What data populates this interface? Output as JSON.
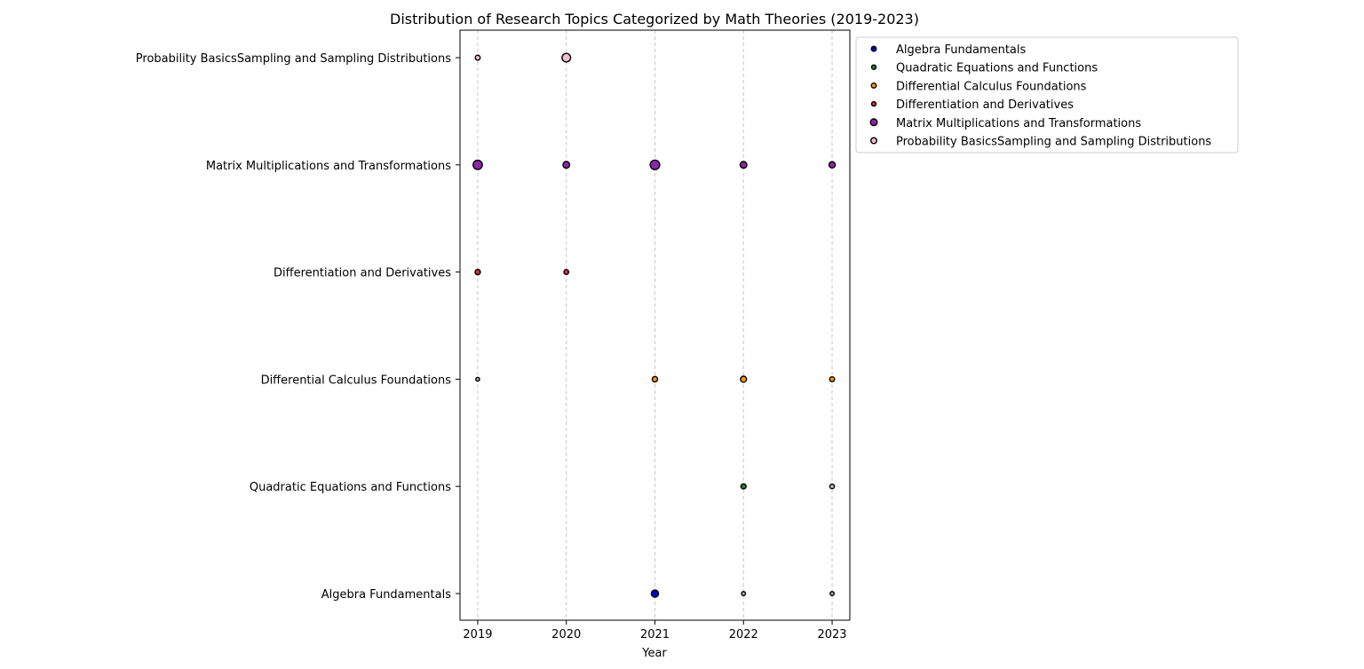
{
  "chart_data": {
    "type": "scatter",
    "title": "Distribution of Research Topics Categorized by Math Theories (2019-2023)",
    "xlabel": "Year",
    "ylabel": "",
    "x_ticks": [
      2019,
      2020,
      2021,
      2022,
      2023
    ],
    "xlim": [
      2018.8,
      2023.2
    ],
    "categories": [
      "Algebra Fundamentals",
      "Quadratic Equations and Functions",
      "Differential Calculus Foundations",
      "Differentiation and Derivatives",
      "Matrix Multiplications and Transformations",
      "Probability BasicsSampling and Sampling Distributions"
    ],
    "grid": "vertical dashed",
    "legend_position": "outside upper right",
    "series": [
      {
        "name": "Algebra Fundamentals",
        "color": "#0000cc",
        "legend_size": 1.2,
        "points": [
          {
            "x": 2021,
            "size": 2.2,
            "color": "#0000cc"
          },
          {
            "x": 2022,
            "size": 0.8,
            "color": "#b0b0b0"
          },
          {
            "x": 2023,
            "size": 0.8,
            "color": "#b0b0b0"
          }
        ]
      },
      {
        "name": "Quadratic Equations and Functions",
        "color": "#2e7d32",
        "legend_size": 1.0,
        "points": [
          {
            "x": 2022,
            "size": 1.3,
            "color": "#2e7d32"
          },
          {
            "x": 2023,
            "size": 1.1,
            "color": "#b0b0b0"
          }
        ]
      },
      {
        "name": "Differential Calculus Foundations",
        "color": "#ff9800",
        "legend_size": 1.2,
        "points": [
          {
            "x": 2019,
            "size": 0.7,
            "color": "#b0b0b0"
          },
          {
            "x": 2021,
            "size": 1.4,
            "color": "#ff9800"
          },
          {
            "x": 2022,
            "size": 1.7,
            "color": "#ff9800"
          },
          {
            "x": 2023,
            "size": 1.2,
            "color": "#ff9800"
          }
        ]
      },
      {
        "name": "Differentiation and Derivatives",
        "color": "#d32f2f",
        "legend_size": 1.0,
        "points": [
          {
            "x": 2019,
            "size": 1.4,
            "color": "#d32f2f"
          },
          {
            "x": 2020,
            "size": 1.2,
            "color": "#d32f2f"
          }
        ]
      },
      {
        "name": "Matrix Multiplications and Transformations",
        "color": "#8e24aa",
        "legend_size": 2.0,
        "points": [
          {
            "x": 2019,
            "size": 3.1,
            "color": "#8e24aa"
          },
          {
            "x": 2020,
            "size": 2.0,
            "color": "#8e24aa"
          },
          {
            "x": 2021,
            "size": 3.2,
            "color": "#8e24aa"
          },
          {
            "x": 2022,
            "size": 2.0,
            "color": "#8e24aa"
          },
          {
            "x": 2023,
            "size": 1.8,
            "color": "#8e24aa"
          }
        ]
      },
      {
        "name": "Probability BasicsSampling and Sampling Distributions",
        "color": "#f8bbd0",
        "legend_size": 1.6,
        "points": [
          {
            "x": 2019,
            "size": 1.2,
            "color": "#f8bbd0"
          },
          {
            "x": 2020,
            "size": 2.8,
            "color": "#f8bbd0"
          }
        ]
      }
    ]
  }
}
